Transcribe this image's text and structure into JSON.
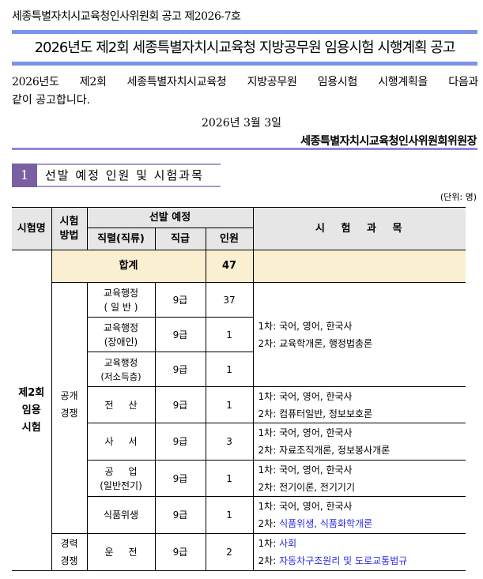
{
  "header": {
    "notice_number": "세종특별자치시교육청인사위원회 공고 제2026-7호",
    "title": "2026년도 제2회 세종특별자치시교육청 지방공무원 임용시험 시행계획 공고",
    "body_line1": "2026년도 제2회 세종특별자치시교육청 지방공무원 임용시험 시행계획을 다음과",
    "body_line2": "같이 공고합니다.",
    "date": "2026년 3월 3일",
    "signer": "세종특별자치시교육청인사위원회위원장"
  },
  "section": {
    "number": "1",
    "title": "선발 예정 인원 및 시험과목",
    "unit": "(단위: 명)"
  },
  "colors": {
    "title_bar": "#7b93e8",
    "section_box": "#7b5fa3",
    "total_row": "#fbefd2",
    "header_bg": "#e6e6e6",
    "highlight_text": "#2a2ae6"
  },
  "table": {
    "headers": {
      "exam_name": "시험명",
      "method": "시험\n방법",
      "plan": "선발 예정",
      "position": "직렬(직류)",
      "grade": "직급",
      "count": "인원",
      "subjects": "시 험 과 목"
    },
    "exam_name": "제2회\n임용\n시험",
    "total_label": "합계",
    "total_count": "47",
    "method_open": "공개\n경쟁",
    "method_career": "경력\n경쟁",
    "rows": [
      {
        "position": "교육행정\n( 일 반 )",
        "grade": "9급",
        "count": "37"
      },
      {
        "position": "교육행정\n(장애인)",
        "grade": "9급",
        "count": "1"
      },
      {
        "position": "교육행정\n(저소득층)",
        "grade": "9급",
        "count": "1"
      },
      {
        "position": "전 산",
        "grade": "9급",
        "count": "1",
        "s1": "1차: 국어, 영어, 한국사",
        "s2": "2차: 컴퓨터일반, 정보보호론"
      },
      {
        "position": "사 서",
        "grade": "9급",
        "count": "3",
        "s1": "1차: 국어, 영어, 한국사",
        "s2": "2차: 자료조직개론, 정보봉사개론"
      },
      {
        "position": "공 업",
        "position_sub": "(일반전기)",
        "grade": "9급",
        "count": "1",
        "s1": "1차: 국어, 영어, 한국사",
        "s2": "2차: 전기이론, 전기기기"
      },
      {
        "position": "식품위생",
        "grade": "9급",
        "count": "1",
        "s1": "1차: 국어, 영어, 한국사",
        "s2_prefix": "2차: ",
        "s2": "식품위생, 식품화학개론"
      },
      {
        "position": "운 전",
        "grade": "9급",
        "count": "2",
        "s1_prefix": "1차: ",
        "s1": "사회",
        "s2_prefix": "2차: ",
        "s2": "자동차구조원리 및 도로교통법규"
      }
    ],
    "edu_subjects": {
      "s1": "1차: 국어, 영어, 한국사",
      "s2": "2차: 교육학개론, 행정법총론"
    }
  }
}
